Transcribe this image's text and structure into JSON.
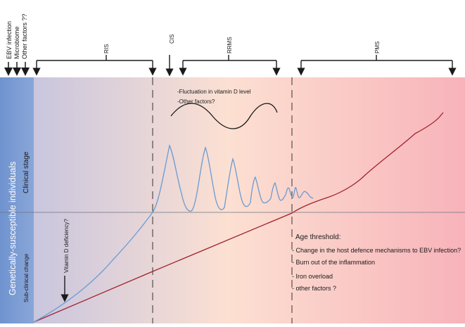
{
  "risk_factors": [
    "EBV infection",
    "Microbiome",
    "Other factors ??"
  ],
  "phases": {
    "ris": "RIS",
    "cis": "CIS",
    "rrms": "RRMS",
    "pms": "PMS"
  },
  "left_band": {
    "title": "Genetically-susceptible individuals",
    "clinical_stage": "Clinical stage",
    "subclinical_change": "Sub-clinical change"
  },
  "vitamin_d_deficiency": "Vitamin D deficiency?",
  "fluctuation_notes": [
    "-Fluctuation in vitamin D level",
    "-Other factors?"
  ],
  "age_threshold": {
    "title": "Age threshold:",
    "items": [
      "- Change in the host defence mechanisms to EBV infection?",
      "- Burn out of the inflammation",
      "- Iron overload",
      "- other factors ?"
    ]
  },
  "colors": {
    "left_band": "#7f9fd4",
    "gradient_start": "#c9c6de",
    "gradient_mid": "#fce0d2",
    "gradient_end": "#f8b3ba",
    "relapse_curve": "#6b9bd3",
    "progression_line": "#a1232c"
  }
}
